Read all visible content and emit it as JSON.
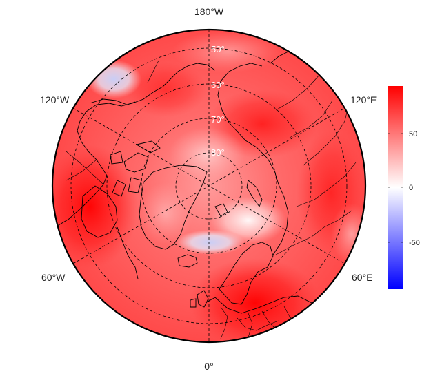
{
  "map": {
    "projection": "north-polar-stereographic",
    "center_meridian_bottom": "0°",
    "lon_labels": {
      "top": "180°W",
      "bottom": "0°",
      "upper_left": "120°W",
      "upper_right": "120°E",
      "lower_left": "60°W",
      "lower_right": "60°E"
    },
    "lat_labels": [
      "50°",
      "60°",
      "70°",
      "80°"
    ],
    "graticule_style": "dashed",
    "coastlines": true,
    "country_borders": true
  },
  "colorbar": {
    "ticks": [
      "50",
      "0",
      "-50"
    ],
    "range": [
      -90,
      90
    ],
    "colors": {
      "high": "#ff0000",
      "mid": "#ffffff",
      "low": "#0000ff"
    }
  },
  "field": {
    "background_value": 55,
    "features": [
      {
        "region": "Eastern Europe / western Russia",
        "value": 85
      },
      {
        "region": "Northern Canada / Hudson Bay",
        "value": 75
      },
      {
        "region": "Bering Strait / Alaska north",
        "value": 60
      },
      {
        "region": "Central Siberia",
        "value": 55
      },
      {
        "region": "Iceland / Norwegian Sea",
        "value": -20
      },
      {
        "region": "Barents / Kara Sea",
        "value": 5
      },
      {
        "region": "North Pacific near Aleutians",
        "value": -15
      }
    ]
  }
}
